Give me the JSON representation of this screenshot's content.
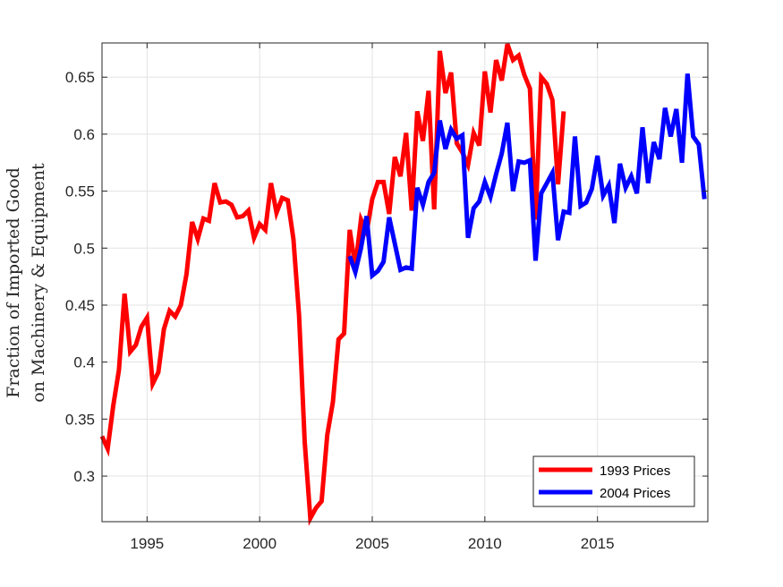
{
  "chart_data": {
    "type": "line",
    "title": "",
    "xlabel": "",
    "ylabel_lines": [
      "Fraction of Imported Good",
      "on Machinery & Equipment"
    ],
    "xlim": [
      1993.0,
      2019.9
    ],
    "ylim": [
      0.26,
      0.68
    ],
    "x_ticks": [
      1995,
      2000,
      2005,
      2010,
      2015
    ],
    "y_ticks": [
      0.3,
      0.35,
      0.4,
      0.45,
      0.5,
      0.55,
      0.6,
      0.65
    ],
    "x_tick_labels": [
      "1995",
      "2000",
      "2005",
      "2010",
      "2015"
    ],
    "y_tick_labels": [
      "0.3",
      "0.35",
      "0.4",
      "0.45",
      "0.5",
      "0.55",
      "0.6",
      "0.65"
    ],
    "grid": true,
    "legend_position": "bottom-right",
    "series": [
      {
        "name": "1993 Prices",
        "color": "#ff0000",
        "x": [
          1993.0,
          1993.25,
          1993.5,
          1993.75,
          1994.0,
          1994.25,
          1994.5,
          1994.75,
          1995.0,
          1995.25,
          1995.5,
          1995.75,
          1996.0,
          1996.25,
          1996.5,
          1996.75,
          1997.0,
          1997.25,
          1997.5,
          1997.75,
          1998.0,
          1998.25,
          1998.5,
          1998.75,
          1999.0,
          1999.25,
          1999.5,
          1999.75,
          2000.0,
          2000.25,
          2000.5,
          2000.75,
          2001.0,
          2001.25,
          2001.5,
          2001.75,
          2002.0,
          2002.25,
          2002.5,
          2002.75,
          2003.0,
          2003.25,
          2003.5,
          2003.75,
          2004.0,
          2004.25,
          2004.5,
          2004.75,
          2005.0,
          2005.25,
          2005.5,
          2005.75,
          2006.0,
          2006.25,
          2006.5,
          2006.75,
          2007.0,
          2007.25,
          2007.5,
          2007.75,
          2008.0,
          2008.25,
          2008.5,
          2008.75,
          2009.0,
          2009.25,
          2009.5,
          2009.75,
          2010.0,
          2010.25,
          2010.5,
          2010.75,
          2011.0,
          2011.25,
          2011.5,
          2011.75,
          2012.0,
          2012.25,
          2012.5,
          2012.75,
          2013.0,
          2013.25,
          2013.5
        ],
        "values": [
          0.335,
          0.324,
          0.362,
          0.393,
          0.46,
          0.409,
          0.415,
          0.431,
          0.439,
          0.381,
          0.391,
          0.429,
          0.445,
          0.44,
          0.45,
          0.477,
          0.523,
          0.508,
          0.526,
          0.524,
          0.557,
          0.54,
          0.541,
          0.538,
          0.527,
          0.528,
          0.533,
          0.509,
          0.521,
          0.516,
          0.557,
          0.531,
          0.544,
          0.542,
          0.508,
          0.441,
          0.33,
          0.263,
          0.272,
          0.278,
          0.336,
          0.365,
          0.42,
          0.425,
          0.516,
          0.484,
          0.525,
          0.514,
          0.543,
          0.558,
          0.558,
          0.53,
          0.58,
          0.563,
          0.601,
          0.533,
          0.62,
          0.594,
          0.638,
          0.534,
          0.673,
          0.636,
          0.654,
          0.592,
          0.584,
          0.573,
          0.601,
          0.59,
          0.655,
          0.619,
          0.665,
          0.647,
          0.679,
          0.665,
          0.669,
          0.652,
          0.64,
          0.525,
          0.65,
          0.644,
          0.63,
          0.556,
          0.62
        ]
      },
      {
        "name": "2004 Prices",
        "color": "#0000ff",
        "x": [
          2004.0,
          2004.25,
          2004.5,
          2004.75,
          2005.0,
          2005.25,
          2005.5,
          2005.75,
          2006.0,
          2006.25,
          2006.5,
          2006.75,
          2007.0,
          2007.25,
          2007.5,
          2007.75,
          2008.0,
          2008.25,
          2008.5,
          2008.75,
          2009.0,
          2009.25,
          2009.5,
          2009.75,
          2010.0,
          2010.25,
          2010.5,
          2010.75,
          2011.0,
          2011.25,
          2011.5,
          2011.75,
          2012.0,
          2012.25,
          2012.5,
          2012.75,
          2013.0,
          2013.25,
          2013.5,
          2013.75,
          2014.0,
          2014.25,
          2014.5,
          2014.75,
          2015.0,
          2015.25,
          2015.5,
          2015.75,
          2016.0,
          2016.25,
          2016.5,
          2016.75,
          2017.0,
          2017.25,
          2017.5,
          2017.75,
          2018.0,
          2018.25,
          2018.5,
          2018.75,
          2019.0,
          2019.25,
          2019.5,
          2019.75
        ],
        "values": [
          0.493,
          0.479,
          0.5,
          0.528,
          0.476,
          0.48,
          0.488,
          0.527,
          0.504,
          0.481,
          0.483,
          0.482,
          0.553,
          0.538,
          0.558,
          0.566,
          0.612,
          0.587,
          0.604,
          0.596,
          0.599,
          0.509,
          0.535,
          0.541,
          0.558,
          0.545,
          0.565,
          0.583,
          0.61,
          0.55,
          0.576,
          0.575,
          0.577,
          0.489,
          0.548,
          0.557,
          0.566,
          0.507,
          0.532,
          0.531,
          0.598,
          0.537,
          0.54,
          0.552,
          0.581,
          0.546,
          0.555,
          0.522,
          0.574,
          0.553,
          0.563,
          0.548,
          0.606,
          0.557,
          0.593,
          0.578,
          0.623,
          0.598,
          0.622,
          0.575,
          0.653,
          0.598,
          0.591,
          0.543
        ]
      }
    ]
  }
}
